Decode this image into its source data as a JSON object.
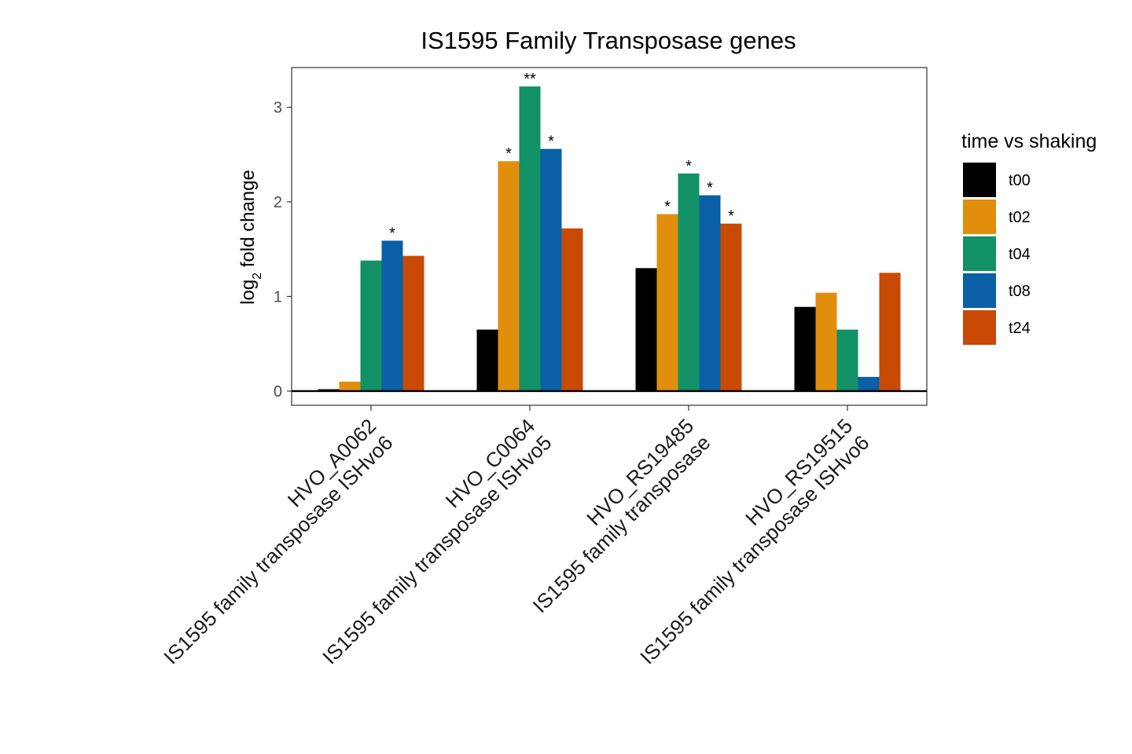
{
  "chart_data": {
    "type": "bar",
    "title": "IS1595 Family Transposase genes",
    "xlabel": "",
    "ylabel": "log",
    "ylabel_subscript": "2",
    "ylabel_suffix": " fold change",
    "ylim": [
      -0.15,
      3.42
    ],
    "yticks": [
      0,
      1,
      2,
      3
    ],
    "ytick_labels": [
      "0",
      "1",
      "2",
      "3"
    ],
    "grid": false,
    "legend_position": "right",
    "legend_title": "time vs shaking",
    "categories": [
      {
        "line1": "HVO_A0062",
        "line2": "IS1595 family transposase ISHvo6"
      },
      {
        "line1": "HVO_C0064",
        "line2": "IS1595 family transposase ISHvo5"
      },
      {
        "line1": "HVO_RS19485",
        "line2": "IS1595 family transposase"
      },
      {
        "line1": "HVO_RS19515",
        "line2": "IS1595 family transposase ISHvo6"
      }
    ],
    "series": [
      {
        "name": "t00",
        "color": "#000000",
        "values": [
          0.02,
          0.65,
          1.3,
          0.89
        ],
        "significance": [
          "",
          "",
          "",
          ""
        ]
      },
      {
        "name": "t02",
        "color": "#E08E0B",
        "values": [
          0.1,
          2.43,
          1.87,
          1.04
        ],
        "significance": [
          "",
          "*",
          "*",
          ""
        ]
      },
      {
        "name": "t04",
        "color": "#129167",
        "values": [
          1.38,
          3.22,
          2.3,
          0.65
        ],
        "significance": [
          "",
          "**",
          "*",
          ""
        ]
      },
      {
        "name": "t08",
        "color": "#0A5FA6",
        "values": [
          1.59,
          2.56,
          2.07,
          0.15
        ],
        "significance": [
          "*",
          "*",
          "*",
          ""
        ]
      },
      {
        "name": "t24",
        "color": "#C94A05",
        "values": [
          1.43,
          1.72,
          1.77,
          1.25
        ],
        "significance": [
          "",
          "",
          "*",
          ""
        ]
      }
    ]
  }
}
